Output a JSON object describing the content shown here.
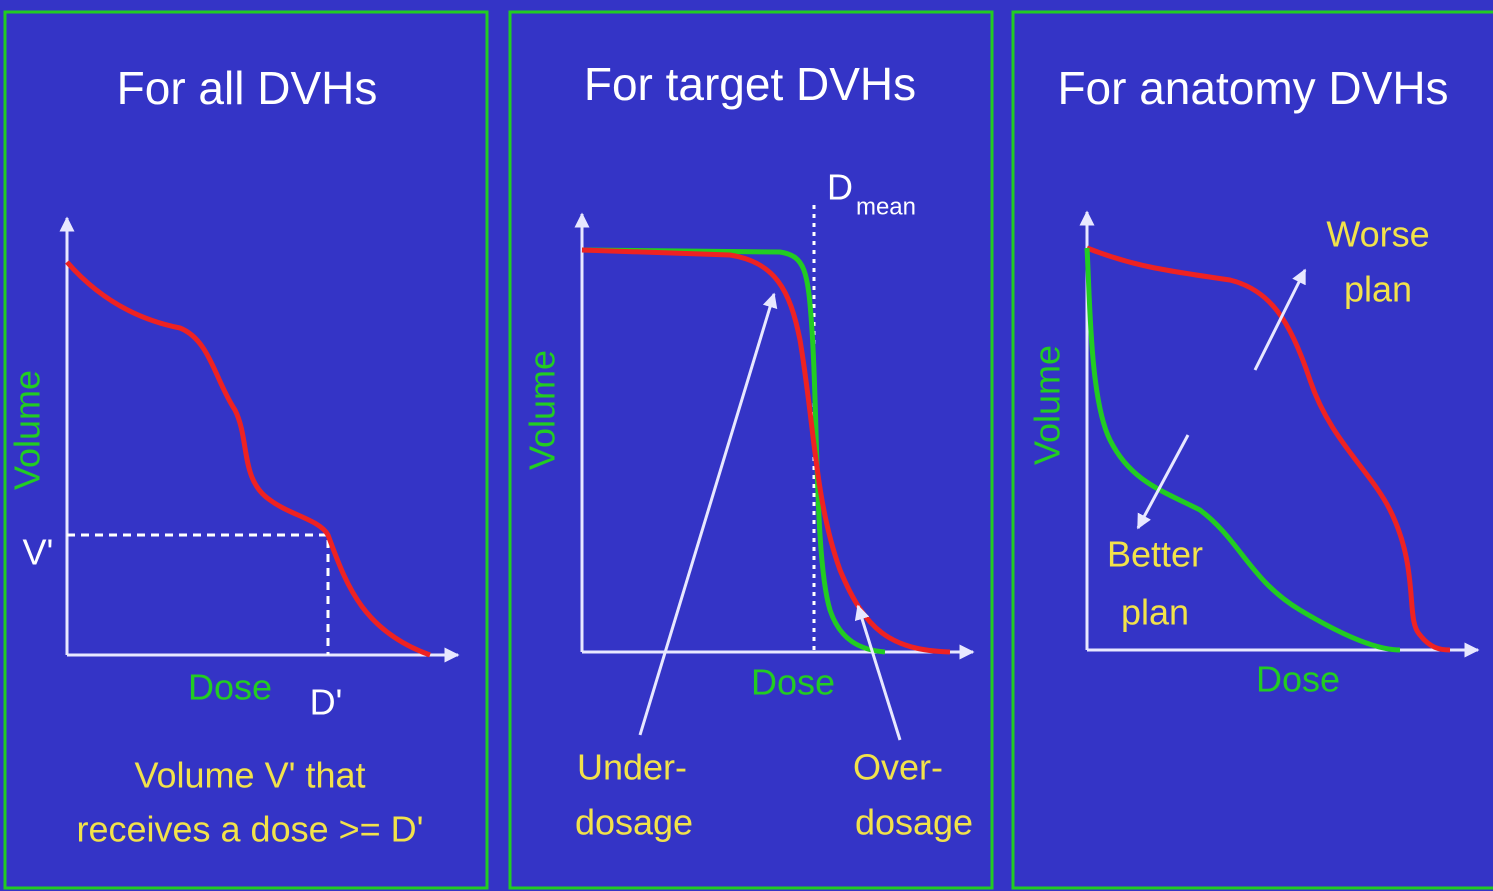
{
  "panels": [
    {
      "title": "For all DVHs",
      "y_label": "Volume",
      "x_label": "Dose",
      "v_label": "V'",
      "d_label": "D'",
      "caption": [
        "Volume V' that",
        "receives a dose >= D'"
      ]
    },
    {
      "title": "For target DVHs",
      "y_label": "Volume",
      "x_label": "Dose",
      "marker_label": "D",
      "marker_subscript": "mean",
      "under_label": [
        "Under-",
        "dosage"
      ],
      "over_label": [
        "Over-",
        "dosage"
      ]
    },
    {
      "title": "For anatomy DVHs",
      "y_label": "Volume",
      "x_label": "Dose",
      "worse_label": [
        "Worse",
        "plan"
      ],
      "better_label": [
        "Better",
        "plan"
      ]
    }
  ]
}
